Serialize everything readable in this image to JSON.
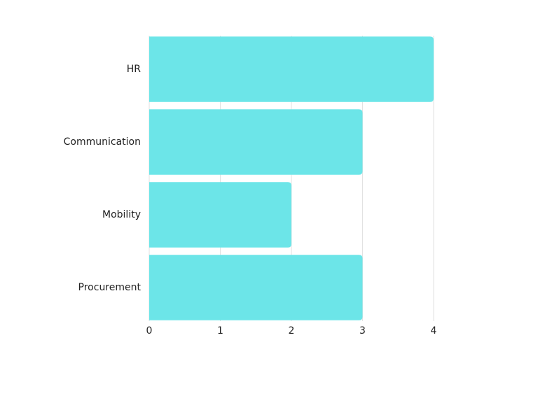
{
  "chart_data": {
    "type": "bar",
    "orientation": "horizontal",
    "categories": [
      "HR",
      "Communication",
      "Mobility",
      "Procurement"
    ],
    "values": [
      4,
      3,
      2,
      3
    ],
    "color": "#6ce5e8",
    "xlim": [
      0,
      4
    ],
    "xticks": [
      0,
      1,
      2,
      3,
      4
    ],
    "grid": true
  }
}
